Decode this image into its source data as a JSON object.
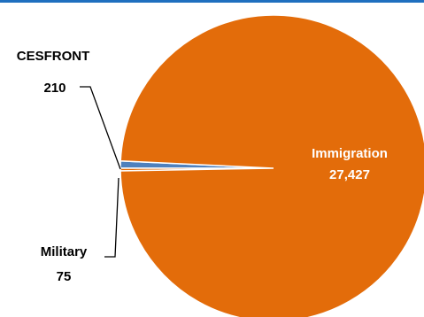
{
  "chart_data": {
    "type": "pie",
    "title": "",
    "categories": [
      "Immigration",
      "CESFRONT",
      "Military"
    ],
    "values": [
      27427,
      210,
      75
    ],
    "value_labels": [
      "27,427",
      "210",
      "75"
    ],
    "colors": {
      "Immigration": "#e36c0a",
      "CESFRONT": "#4f81bd",
      "Military": "#e36c0a",
      "slice_edge": "#ffffff",
      "leader": "#000000",
      "inside_label": "#ffffff",
      "outside_label": "#000000",
      "top_rule": "#1f6fbf"
    },
    "start_angle_deg": 180,
    "direction": "counterclockwise-from-left",
    "legend": "none"
  }
}
